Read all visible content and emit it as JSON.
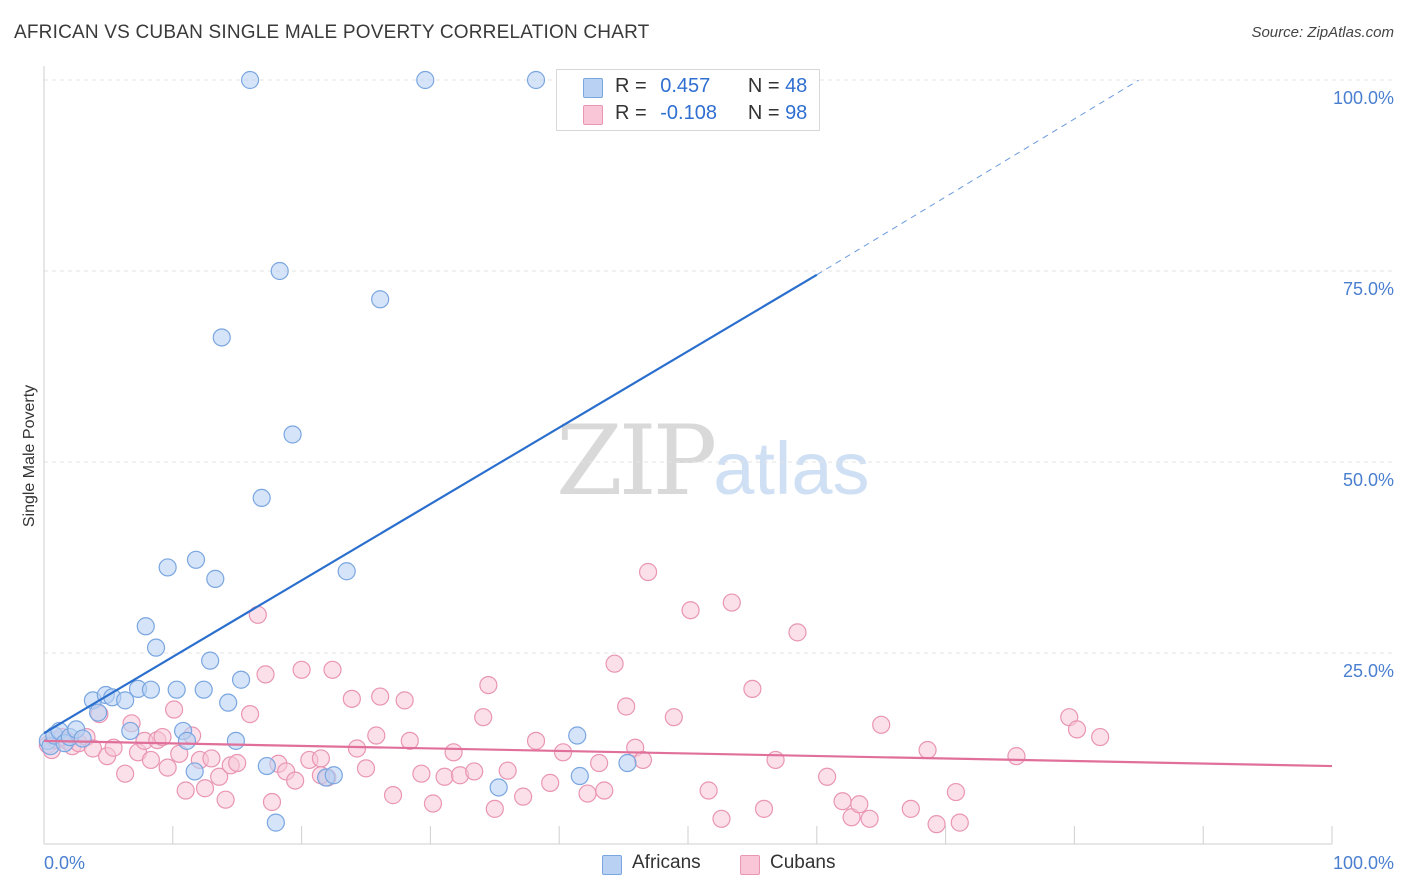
{
  "header": {
    "title": "AFRICAN VS CUBAN SINGLE MALE POVERTY CORRELATION CHART",
    "source": "Source: ZipAtlas.com"
  },
  "watermark": {
    "zip": "ZIP",
    "atlas": "atlas"
  },
  "legend": {
    "africans": {
      "r_label": "R =",
      "r_value": "0.457",
      "n_label": "N =",
      "n_value": "48"
    },
    "cubans": {
      "r_label": "R =",
      "r_value": "-0.108",
      "n_label": "N =",
      "n_value": "98"
    }
  },
  "bottom_legend": {
    "africans": "Africans",
    "cubans": "Cubans"
  },
  "colors": {
    "africans_fill": "#b9d2f3",
    "africans_stroke": "#7aa6e0",
    "africans_line": "#2b6fce",
    "cubans_fill": "#f8c6d7",
    "cubans_stroke": "#e995b3",
    "cubans_line": "#e0709a",
    "grid": "#e3e3e3",
    "tick_text": "#4a7fd0"
  },
  "chart_data": {
    "type": "scatter",
    "title": "AFRICAN VS CUBAN SINGLE MALE POVERTY CORRELATION CHART",
    "xlabel": "",
    "ylabel": "Single Male Poverty",
    "xlim": [
      0,
      100
    ],
    "ylim": [
      0,
      100
    ],
    "x_tick_labels": [
      "0.0%",
      "100.0%"
    ],
    "y_tick_labels": [
      "25.0%",
      "50.0%",
      "75.0%",
      "100.0%"
    ],
    "y_ticks": [
      25,
      50,
      75,
      100
    ],
    "grid": true,
    "series": [
      {
        "name": "Africans",
        "trend": {
          "x0": 0,
          "y0": 14.5,
          "x1": 60,
          "y1": 74.5,
          "x1_dashed": 85,
          "y1_dashed": 100
        },
        "points": [
          [
            0.3,
            13.5
          ],
          [
            0.5,
            12.8
          ],
          [
            0.8,
            14.2
          ],
          [
            1.2,
            14.8
          ],
          [
            1.6,
            13.2
          ],
          [
            2.0,
            14.0
          ],
          [
            2.5,
            15.0
          ],
          [
            3.0,
            13.8
          ],
          [
            3.8,
            18.8
          ],
          [
            4.2,
            17.2
          ],
          [
            4.8,
            19.5
          ],
          [
            5.3,
            19.2
          ],
          [
            6.3,
            18.8
          ],
          [
            7.3,
            20.3
          ],
          [
            8.3,
            20.2
          ],
          [
            7.9,
            28.5
          ],
          [
            8.7,
            25.7
          ],
          [
            6.7,
            14.8
          ],
          [
            10.3,
            20.2
          ],
          [
            9.6,
            36.2
          ],
          [
            10.8,
            14.8
          ],
          [
            11.1,
            13.5
          ],
          [
            11.8,
            37.2
          ],
          [
            12.4,
            20.2
          ],
          [
            12.9,
            24.0
          ],
          [
            13.3,
            34.7
          ],
          [
            13.8,
            66.3
          ],
          [
            14.3,
            18.5
          ],
          [
            14.9,
            13.5
          ],
          [
            15.3,
            21.5
          ],
          [
            16.0,
            100.0
          ],
          [
            16.9,
            45.3
          ],
          [
            17.3,
            10.2
          ],
          [
            18.3,
            75.0
          ],
          [
            19.3,
            53.6
          ],
          [
            21.9,
            8.7
          ],
          [
            23.5,
            35.7
          ],
          [
            26.1,
            71.3
          ],
          [
            29.6,
            100.0
          ],
          [
            35.3,
            7.4
          ],
          [
            38.2,
            100.0
          ],
          [
            41.4,
            14.2
          ],
          [
            45.3,
            10.6
          ],
          [
            41.6,
            8.9
          ],
          [
            52.9,
            100.0
          ],
          [
            22.5,
            9.0
          ],
          [
            11.7,
            9.5
          ],
          [
            18.0,
            2.8
          ]
        ]
      },
      {
        "name": "Cubans",
        "trend": {
          "x0": 0,
          "y0": 13.5,
          "x1": 100,
          "y1": 10.2
        },
        "points": [
          [
            0.3,
            13.0
          ],
          [
            0.6,
            12.3
          ],
          [
            0.9,
            13.6
          ],
          [
            1.4,
            14.0
          ],
          [
            1.8,
            13.5
          ],
          [
            2.2,
            12.8
          ],
          [
            2.7,
            13.2
          ],
          [
            3.3,
            14.0
          ],
          [
            3.8,
            12.5
          ],
          [
            4.3,
            17.0
          ],
          [
            4.9,
            11.5
          ],
          [
            5.4,
            12.6
          ],
          [
            6.3,
            9.2
          ],
          [
            6.8,
            15.8
          ],
          [
            7.3,
            12.0
          ],
          [
            7.8,
            13.5
          ],
          [
            8.3,
            11.0
          ],
          [
            8.8,
            13.6
          ],
          [
            9.2,
            14.0
          ],
          [
            9.6,
            10.0
          ],
          [
            10.1,
            17.6
          ],
          [
            10.5,
            11.8
          ],
          [
            11.0,
            7.0
          ],
          [
            11.5,
            14.2
          ],
          [
            12.1,
            11.0
          ],
          [
            12.5,
            7.3
          ],
          [
            13.0,
            11.2
          ],
          [
            13.6,
            8.8
          ],
          [
            14.1,
            5.8
          ],
          [
            14.5,
            10.3
          ],
          [
            15.0,
            10.6
          ],
          [
            16.0,
            17.0
          ],
          [
            16.6,
            30.0
          ],
          [
            17.2,
            22.2
          ],
          [
            17.7,
            5.5
          ],
          [
            18.2,
            10.5
          ],
          [
            18.8,
            9.5
          ],
          [
            19.5,
            8.3
          ],
          [
            20.0,
            22.8
          ],
          [
            20.6,
            11.0
          ],
          [
            21.5,
            11.2
          ],
          [
            22.0,
            8.7
          ],
          [
            22.4,
            22.8
          ],
          [
            23.9,
            19.0
          ],
          [
            24.3,
            12.5
          ],
          [
            25.0,
            9.9
          ],
          [
            25.8,
            14.2
          ],
          [
            26.1,
            19.3
          ],
          [
            27.1,
            6.4
          ],
          [
            28.0,
            18.8
          ],
          [
            28.4,
            13.5
          ],
          [
            29.3,
            9.2
          ],
          [
            30.2,
            5.3
          ],
          [
            31.1,
            8.8
          ],
          [
            31.8,
            12.0
          ],
          [
            32.3,
            9.0
          ],
          [
            33.4,
            9.5
          ],
          [
            34.1,
            16.6
          ],
          [
            34.5,
            20.8
          ],
          [
            35.0,
            4.6
          ],
          [
            36.0,
            9.6
          ],
          [
            37.2,
            6.2
          ],
          [
            38.2,
            13.5
          ],
          [
            39.3,
            8.0
          ],
          [
            40.3,
            12.0
          ],
          [
            42.2,
            6.6
          ],
          [
            43.1,
            10.6
          ],
          [
            43.5,
            7.0
          ],
          [
            44.3,
            23.6
          ],
          [
            45.2,
            18.0
          ],
          [
            45.9,
            12.6
          ],
          [
            46.5,
            11.0
          ],
          [
            46.9,
            35.6
          ],
          [
            48.9,
            16.6
          ],
          [
            50.2,
            30.6
          ],
          [
            51.6,
            7.0
          ],
          [
            52.6,
            3.3
          ],
          [
            53.4,
            31.6
          ],
          [
            55.0,
            20.3
          ],
          [
            55.9,
            4.6
          ],
          [
            56.8,
            11.0
          ],
          [
            58.5,
            27.7
          ],
          [
            60.8,
            8.8
          ],
          [
            62.0,
            5.6
          ],
          [
            62.7,
            3.5
          ],
          [
            63.3,
            5.2
          ],
          [
            64.1,
            3.3
          ],
          [
            65.0,
            15.6
          ],
          [
            67.3,
            4.6
          ],
          [
            68.6,
            12.3
          ],
          [
            69.3,
            2.6
          ],
          [
            70.8,
            6.8
          ],
          [
            71.1,
            2.8
          ],
          [
            75.5,
            11.5
          ],
          [
            79.6,
            16.6
          ],
          [
            80.2,
            15.0
          ],
          [
            82.0,
            14.0
          ],
          [
            21.5,
            9.0
          ]
        ]
      }
    ]
  }
}
